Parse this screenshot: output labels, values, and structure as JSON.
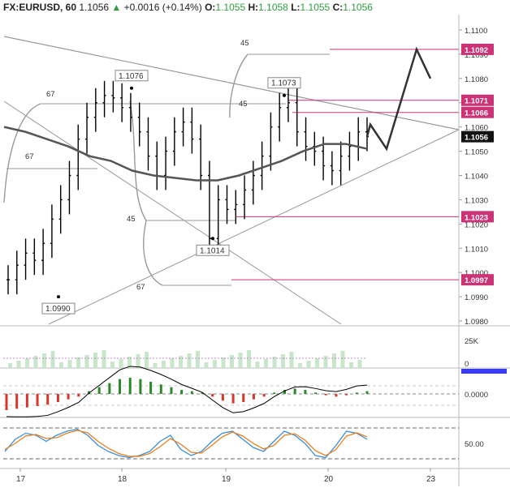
{
  "header": {
    "symbol": "FX:EURUSD, 60",
    "last": "1.1056",
    "arrow": "▲",
    "change": "+0.0016 (+0.14%)",
    "o_label": "O:",
    "o": "1.1055",
    "h_label": "H:",
    "h": "1.1058",
    "l_label": "L:",
    "l": "1.1055",
    "c_label": "C:",
    "c": "1.1056"
  },
  "colors": {
    "candle": "#000000",
    "ma": "#555555",
    "level": "#cc3377",
    "last_price_bg": "#111111",
    "macd_pos": "#2a8a2a",
    "macd_neg": "#d9362b",
    "stoch_k": "#3a8fd8",
    "stoch_d": "#e8801e",
    "volume": "#c8e6c9"
  },
  "chart_data": [
    {
      "type": "line",
      "panel": "price",
      "scale": "linear",
      "x_axis": {
        "ticks": [
          "17",
          "18",
          "19",
          "20",
          "23"
        ]
      },
      "y_axis": {
        "ticks": [
          "1.1100",
          "1.1090",
          "1.1080",
          "1.1070",
          "1.1060",
          "1.1050",
          "1.1040",
          "1.1030",
          "1.1020",
          "1.1010",
          "1.1000",
          "1.0990",
          "1.0980"
        ],
        "ylim": [
          1.0978,
          1.1105
        ]
      },
      "price_labels": [
        {
          "value": "1.1092",
          "kind": "level"
        },
        {
          "value": "1.1071",
          "kind": "level"
        },
        {
          "value": "1.1066",
          "kind": "level"
        },
        {
          "value": "1.1056",
          "kind": "last"
        },
        {
          "value": "1.1023",
          "kind": "level"
        },
        {
          "value": "1.0997",
          "kind": "level"
        }
      ],
      "annotations": [
        {
          "text": "1.1076",
          "value": 1.1076
        },
        {
          "text": "1.1073",
          "value": 1.1073
        },
        {
          "text": "1.1014",
          "value": 1.1014
        },
        {
          "text": "1.0990",
          "value": 1.099
        }
      ],
      "fib_labels": [
        "67",
        "45",
        "67",
        "45",
        "45",
        "67"
      ],
      "close_series": [
        1.0997,
        1.1003,
        1.1008,
        1.1005,
        1.1012,
        1.1022,
        1.103,
        1.104,
        1.1055,
        1.1064,
        1.107,
        1.1073,
        1.1072,
        1.1068,
        1.1064,
        1.1058,
        1.1048,
        1.104,
        1.105,
        1.1058,
        1.1062,
        1.1055,
        1.104,
        1.1014,
        1.103,
        1.1026,
        1.1028,
        1.1034,
        1.104,
        1.1048,
        1.106,
        1.1068,
        1.107,
        1.1058,
        1.1052,
        1.105,
        1.1044,
        1.1042,
        1.1048,
        1.1052,
        1.1058,
        1.1056
      ],
      "ma_series": [
        1.106,
        1.1058,
        1.1055,
        1.1052,
        1.1048,
        1.1046,
        1.1042,
        1.104,
        1.1039,
        1.1038,
        1.1038,
        1.104,
        1.1043,
        1.1046,
        1.105,
        1.1053,
        1.1053,
        1.1051
      ],
      "projection": [
        1.1056,
        1.1061,
        1.1051,
        1.1092,
        1.108
      ]
    },
    {
      "type": "bar",
      "panel": "volume",
      "y_axis": {
        "ticks": [
          "25K",
          "0"
        ]
      }
    },
    {
      "type": "bar",
      "panel": "macd",
      "y_axis": {
        "ticks": [
          "0.0000"
        ]
      },
      "values": [
        -0.0012,
        -0.0011,
        -0.001,
        -0.0009,
        -0.0008,
        -0.0006,
        -0.0004,
        -0.0002,
        0.0002,
        0.0005,
        0.0008,
        0.0011,
        0.0012,
        0.0011,
        0.0009,
        0.0007,
        0.0005,
        0.0003,
        0.0002,
        0.0001,
        -0.0002,
        -0.0005,
        -0.0007,
        -0.0006,
        -0.0004,
        -0.0002,
        0.0001,
        0.0003,
        0.0004,
        0.0003,
        0.0001,
        -0.0001,
        -0.0002,
        -0.0001,
        0.0001,
        0.0002
      ]
    },
    {
      "type": "line",
      "panel": "stochastic",
      "y_axis": {
        "ticks": [
          "50.00"
        ]
      },
      "series": [
        {
          "values": [
            30,
            60,
            75,
            70,
            55,
            70,
            80,
            85,
            70,
            45,
            30,
            20,
            15,
            20,
            30,
            55,
            70,
            35,
            20,
            30,
            55,
            75,
            80,
            60,
            40,
            30,
            55,
            80,
            70,
            50,
            20,
            15,
            45,
            80,
            75,
            60
          ]
        },
        {
          "values": [
            35,
            50,
            68,
            72,
            62,
            64,
            75,
            82,
            76,
            55,
            38,
            25,
            18,
            18,
            25,
            42,
            62,
            48,
            28,
            26,
            45,
            66,
            78,
            68,
            50,
            36,
            45,
            70,
            74,
            58,
            32,
            20,
            35,
            68,
            76,
            66
          ]
        }
      ]
    }
  ]
}
